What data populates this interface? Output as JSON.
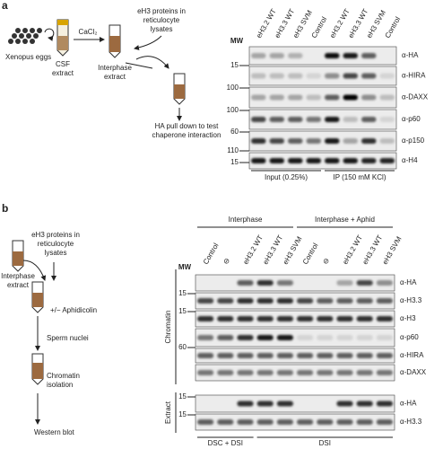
{
  "panel_a": {
    "letter": "a",
    "schematic": {
      "eggs": "Xenopus eggs",
      "csf": [
        "CSF",
        "extract"
      ],
      "cacl": "CaCl₂",
      "proteins": [
        "eH3 proteins in",
        "reticulocyte",
        "lysates"
      ],
      "interphase": [
        "Interphase",
        "extract"
      ],
      "pulldown": [
        "HA pull down to test",
        "chaperone interaction"
      ]
    },
    "mw_label": "MW",
    "columns": [
      {
        "label": "eH3.2 WT",
        "color": "#a83a8c"
      },
      {
        "label": "eH3.3 WT",
        "color": "#3c9a3c"
      },
      {
        "label": "eH3 SVM",
        "color": "#7a3f9e"
      },
      {
        "label": "Control",
        "color": "#222222"
      },
      {
        "label": "eH3.2 WT",
        "color": "#a83a8c"
      },
      {
        "label": "eH3.3 WT",
        "color": "#3c9a3c"
      },
      {
        "label": "eH3 SVM",
        "color": "#7a3f9e"
      },
      {
        "label": "Control",
        "color": "#222222"
      }
    ],
    "rows": [
      "α-HA",
      "α-HIRA",
      "α-DAXX",
      "α-p60",
      "α-p150",
      "α-H4"
    ],
    "markers": [
      "15",
      "100",
      "100",
      "60",
      "110",
      "15"
    ],
    "groups": [
      "Input (0.25%)",
      "IP (150 mM KCl)"
    ]
  },
  "panel_b": {
    "letter": "b",
    "schematic": {
      "proteins": [
        "eH3 proteins in",
        "reticulocyte",
        "lysates"
      ],
      "interphase": [
        "Interphase",
        "extract"
      ],
      "aphid": "+/− Aphidicolin",
      "sperm": "Sperm nuclei",
      "chromatin": [
        "Chromatin",
        "isolation"
      ],
      "western": "Western blot"
    },
    "conditions": [
      "Interphase",
      "Interphase + Aphid"
    ],
    "mw_label": "MW",
    "columns": [
      {
        "label": "Control",
        "color": "#222222"
      },
      {
        "label": "⊖",
        "color": "#222222"
      },
      {
        "label": "eH3.2 WT",
        "color": "#a83a8c"
      },
      {
        "label": "eH3.3 WT",
        "color": "#3c9a3c"
      },
      {
        "label": "eH3 SVM",
        "color": "#7a3f9e"
      },
      {
        "label": "Control",
        "color": "#222222"
      },
      {
        "label": "⊖",
        "color": "#222222"
      },
      {
        "label": "eH3.2 WT",
        "color": "#a83a8c"
      },
      {
        "label": "eH3.3 WT",
        "color": "#3c9a3c"
      },
      {
        "label": "eH3 SVM",
        "color": "#7a3f9e"
      }
    ],
    "rows": [
      "α-HA",
      "α-H3.3",
      "α-H3",
      "α-p60",
      "α-HIRA",
      "α-DAXX",
      "α-HA",
      "α-H3.3"
    ],
    "markers": [
      "15",
      "15",
      "60",
      "15",
      "15"
    ],
    "sections": [
      "Chromatin",
      "Extract"
    ],
    "groups": [
      "DSC + DSI",
      "DSI"
    ]
  }
}
